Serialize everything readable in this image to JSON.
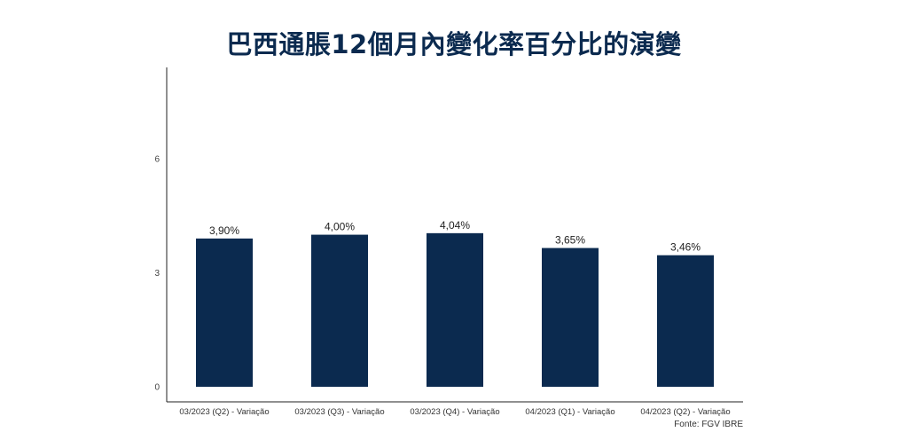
{
  "chart_data": {
    "type": "bar",
    "title": "巴西通脹12個月內變化率百分比的演變",
    "categories": [
      "03/2023 (Q2) - Variação",
      "03/2023 (Q3) - Variação",
      "03/2023 (Q4) - Variação",
      "04/2023 (Q1) - Variação",
      "04/2023 (Q2) - Variação"
    ],
    "values": [
      3.9,
      4.0,
      4.04,
      3.65,
      3.46
    ],
    "data_labels": [
      "3,90%",
      "4,00%",
      "4,04%",
      "3,65%",
      "3,46%"
    ],
    "ylim": [
      0,
      8.4
    ],
    "yticks": [
      0,
      3,
      6
    ],
    "ytick_labels": [
      "0",
      "3",
      "6"
    ],
    "xlabel": "",
    "ylabel": "",
    "grid": false,
    "bar_color": "#0b2a4f",
    "source": "Fonte: FGV IBRE"
  }
}
